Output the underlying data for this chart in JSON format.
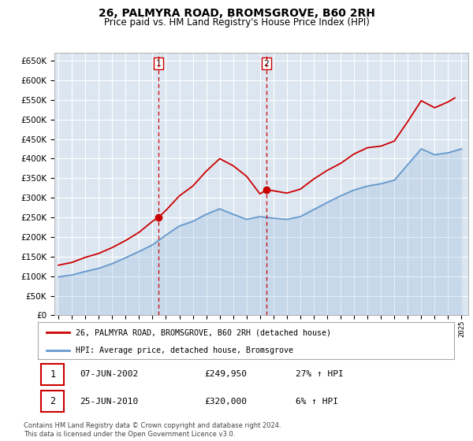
{
  "title": "26, PALMYRA ROAD, BROMSGROVE, B60 2RH",
  "subtitle": "Price paid vs. HM Land Registry's House Price Index (HPI)",
  "legend_line1": "26, PALMYRA ROAD, BROMSGROVE, B60 2RH (detached house)",
  "legend_line2": "HPI: Average price, detached house, Bromsgrove",
  "sale1_label": "1",
  "sale1_date": "07-JUN-2002",
  "sale1_price": "£249,950",
  "sale1_hpi": "27% ↑ HPI",
  "sale2_label": "2",
  "sale2_date": "25-JUN-2010",
  "sale2_price": "£320,000",
  "sale2_hpi": "6% ↑ HPI",
  "footer": "Contains HM Land Registry data © Crown copyright and database right 2024.\nThis data is licensed under the Open Government Licence v3.0.",
  "red_color": "#cc0000",
  "blue_color": "#6699cc",
  "background_color": "#dce6f1",
  "sale1_x": 2002.44,
  "sale1_y": 249950,
  "sale2_x": 2010.47,
  "sale2_y": 320000,
  "ylim": [
    0,
    670000
  ],
  "xlim_start": 1994.7,
  "xlim_end": 2025.5,
  "ytick_step": 50000,
  "years_hpi": [
    1995,
    1996,
    1997,
    1998,
    1999,
    2000,
    2001,
    2002,
    2003,
    2004,
    2005,
    2006,
    2007,
    2008,
    2009,
    2010,
    2011,
    2012,
    2013,
    2014,
    2015,
    2016,
    2017,
    2018,
    2019,
    2020,
    2021,
    2022,
    2023,
    2024,
    2025
  ],
  "hpi_values": [
    98000,
    103000,
    112000,
    120000,
    132000,
    147000,
    163000,
    180000,
    205000,
    228000,
    240000,
    258000,
    272000,
    258000,
    245000,
    252000,
    248000,
    245000,
    252000,
    270000,
    288000,
    305000,
    320000,
    330000,
    336000,
    345000,
    385000,
    425000,
    410000,
    415000,
    425000
  ],
  "years_red": [
    1995.0,
    1996.0,
    1997.0,
    1998.0,
    1999.0,
    2000.0,
    2001.0,
    2002.0,
    2002.44,
    2003.0,
    2004.0,
    2005.0,
    2006.0,
    2007.0,
    2008.0,
    2009.0,
    2010.0,
    2010.47,
    2011.0,
    2012.0,
    2013.0,
    2014.0,
    2015.0,
    2016.0,
    2017.0,
    2018.0,
    2019.0,
    2020.0,
    2021.0,
    2022.0,
    2023.0,
    2024.0,
    2024.5
  ],
  "red_values": [
    128000,
    135000,
    148000,
    158000,
    173000,
    191000,
    212000,
    240000,
    249950,
    268000,
    305000,
    330000,
    368000,
    400000,
    382000,
    355000,
    310000,
    320000,
    318000,
    312000,
    322000,
    348000,
    370000,
    388000,
    412000,
    428000,
    432000,
    445000,
    495000,
    548000,
    530000,
    545000,
    555000
  ]
}
